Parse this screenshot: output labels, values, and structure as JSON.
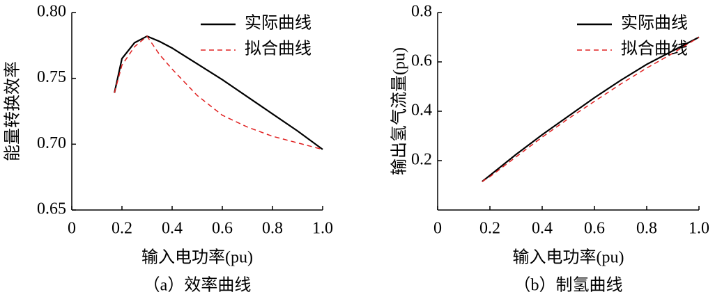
{
  "chart_data": [
    {
      "type": "line",
      "caption": "（a）效率曲线",
      "xlabel": "输入电功率(pu)",
      "ylabel": "能量转换效率",
      "x": [
        0.17,
        0.2,
        0.25,
        0.3,
        0.35,
        0.4,
        0.5,
        0.6,
        0.7,
        0.8,
        0.9,
        1.0
      ],
      "series": [
        {
          "name": "实际曲线",
          "color": "#000000",
          "dashed": false,
          "values": [
            0.739,
            0.765,
            0.777,
            0.782,
            0.778,
            0.773,
            0.761,
            0.749,
            0.736,
            0.723,
            0.71,
            0.696
          ]
        },
        {
          "name": "拟合曲线",
          "color": "#e02020",
          "dashed": true,
          "values": [
            0.739,
            0.76,
            0.774,
            0.782,
            0.768,
            0.757,
            0.737,
            0.722,
            0.713,
            0.706,
            0.701,
            0.696
          ]
        }
      ],
      "xlim": [
        0,
        1
      ],
      "xticks": [
        0,
        0.2,
        0.4,
        0.6,
        0.8,
        {
          "value": 1,
          "label": "1.0"
        }
      ],
      "ylim": [
        0.65,
        0.8
      ],
      "yticks": [
        0.65,
        {
          "value": 0.7,
          "label": "0.70"
        },
        0.75,
        {
          "value": 0.8,
          "label": "0.80"
        }
      ],
      "grid": false,
      "legend": "upper right"
    },
    {
      "type": "line",
      "caption": "（b）制氢曲线",
      "xlabel": "输入电功率(pu)",
      "ylabel": "输出氢气流量(pu)",
      "x": [
        0.17,
        0.2,
        0.3,
        0.4,
        0.5,
        0.6,
        0.7,
        0.8,
        0.9,
        1.0
      ],
      "series": [
        {
          "name": "实际曲线",
          "color": "#000000",
          "dashed": false,
          "values": [
            0.115,
            0.14,
            0.225,
            0.305,
            0.38,
            0.455,
            0.525,
            0.59,
            0.645,
            0.7
          ]
        },
        {
          "name": "拟合曲线",
          "color": "#e02020",
          "dashed": true,
          "values": [
            0.115,
            0.135,
            0.215,
            0.295,
            0.37,
            0.44,
            0.51,
            0.575,
            0.635,
            0.7
          ]
        }
      ],
      "xlim": [
        0,
        1
      ],
      "xticks": [
        0,
        0.2,
        0.4,
        0.6,
        0.8,
        {
          "value": 1,
          "label": "1.0"
        }
      ],
      "ylim": [
        0,
        0.8
      ],
      "yticks": [
        0.2,
        0.4,
        0.6,
        0.8
      ],
      "grid": false,
      "legend": "upper right"
    }
  ]
}
